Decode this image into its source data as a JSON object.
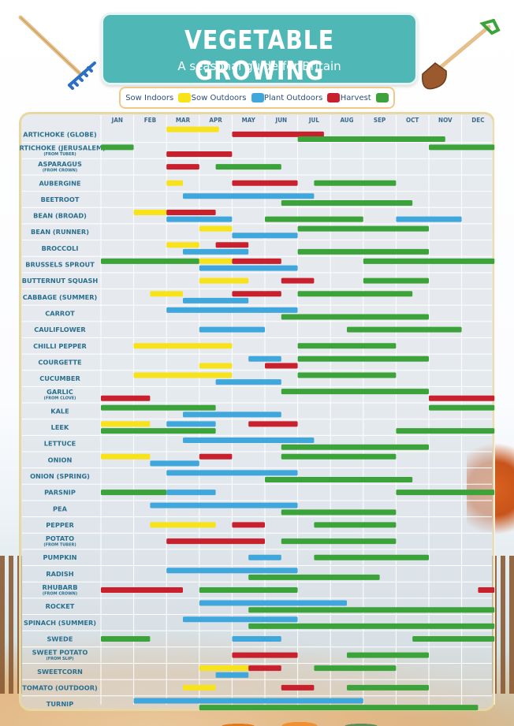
{
  "title": "VEGETABLE GROWING",
  "subtitle": "A seasonal guide for Britain",
  "colors": {
    "sow_indoors": "#f8e31a",
    "sow_outdoors": "#3fa7dc",
    "plant_outdoors": "#c8202d",
    "harvest": "#3ca23a",
    "title_bg": "#4fb8b6"
  },
  "legend": [
    {
      "label": "Sow Indoors",
      "key": "sow_indoors"
    },
    {
      "label": "Sow Outdoors",
      "key": "sow_outdoors"
    },
    {
      "label": "Plant Outdoors",
      "key": "plant_outdoors"
    },
    {
      "label": "Harvest",
      "key": "harvest"
    }
  ],
  "months": [
    "JAN",
    "FEB",
    "MAR",
    "APR",
    "MAY",
    "JUN",
    "JUL",
    "AUG",
    "SEP",
    "OCT",
    "NOV",
    "DEC"
  ],
  "chart_data": {
    "type": "table",
    "columns": [
      "JAN",
      "FEB",
      "MAR",
      "APR",
      "MAY",
      "JUN",
      "JUL",
      "AUG",
      "SEP",
      "OCT",
      "NOV",
      "DEC"
    ],
    "rows": [
      {
        "name": "ARTICHOKE (GLOBE)",
        "sub": "",
        "bars": [
          [
            [
              "i",
              2,
              3.6
            ]
          ],
          [
            [
              "p",
              4,
              6.8
            ]
          ],
          [
            [
              "h",
              6,
              10.5
            ]
          ]
        ]
      },
      {
        "name": "ARTICHOKE (JERUSALEM)",
        "sub": "(FROM TUBER)",
        "bars": [
          [
            [
              "h",
              0,
              1
            ],
            [
              "h",
              10,
              12
            ]
          ],
          [
            [
              "p",
              2,
              4
            ]
          ]
        ]
      },
      {
        "name": "ASPARAGUS",
        "sub": "(FROM CROWN)",
        "bars": [
          [
            [
              "p",
              2,
              3
            ],
            [
              "h",
              3.5,
              5.5
            ]
          ]
        ]
      },
      {
        "name": "AUBERGINE",
        "sub": "",
        "bars": [
          [
            [
              "i",
              2,
              2.5
            ],
            [
              "p",
              4,
              6
            ],
            [
              "h",
              6.5,
              9
            ]
          ]
        ]
      },
      {
        "name": "BEETROOT",
        "sub": "",
        "bars": [
          [
            [
              "o",
              2.5,
              6.5
            ]
          ],
          [
            [
              "h",
              5.5,
              9.5
            ]
          ]
        ]
      },
      {
        "name": "BEAN (BROAD)",
        "sub": "",
        "bars": [
          [
            [
              "i",
              1,
              2
            ],
            [
              "p",
              2,
              3.5
            ]
          ],
          [
            [
              "o",
              2,
              4
            ],
            [
              "h",
              5,
              8
            ],
            [
              "o",
              9,
              11
            ]
          ]
        ]
      },
      {
        "name": "BEAN (RUNNER)",
        "sub": "",
        "bars": [
          [
            [
              "i",
              3,
              4
            ],
            [
              "h",
              6,
              10
            ]
          ],
          [
            [
              "o",
              4,
              6
            ]
          ]
        ]
      },
      {
        "name": "BROCCOLI",
        "sub": "",
        "bars": [
          [
            [
              "i",
              2,
              3
            ],
            [
              "p",
              3.5,
              4.5
            ]
          ],
          [
            [
              "o",
              2.5,
              4.5
            ],
            [
              "h",
              6,
              10
            ]
          ]
        ]
      },
      {
        "name": "BRUSSELS SPROUT",
        "sub": "",
        "bars": [
          [
            [
              "h",
              0,
              3
            ],
            [
              "i",
              3,
              4
            ],
            [
              "p",
              4,
              5.5
            ],
            [
              "h",
              8,
              12
            ]
          ],
          [
            [
              "o",
              3,
              6
            ]
          ]
        ]
      },
      {
        "name": "BUTTERNUT SQUASH",
        "sub": "",
        "bars": [
          [
            [
              "i",
              3,
              4.5
            ],
            [
              "p",
              5.5,
              6.5
            ],
            [
              "h",
              8,
              10
            ]
          ]
        ]
      },
      {
        "name": "CABBAGE (SUMMER)",
        "sub": "",
        "bars": [
          [
            [
              "i",
              1.5,
              2.5
            ],
            [
              "p",
              4,
              5.5
            ],
            [
              "h",
              6,
              9.5
            ]
          ],
          [
            [
              "o",
              2.5,
              4.5
            ]
          ]
        ]
      },
      {
        "name": "CARROT",
        "sub": "",
        "bars": [
          [
            [
              "o",
              2,
              6
            ]
          ],
          [
            [
              "h",
              5.5,
              10
            ]
          ]
        ]
      },
      {
        "name": "CAULIFLOWER",
        "sub": "",
        "bars": [
          [
            [
              "o",
              3,
              5
            ],
            [
              "h",
              7.5,
              11
            ]
          ]
        ]
      },
      {
        "name": "CHILLI PEPPER",
        "sub": "",
        "bars": [
          [
            [
              "i",
              1,
              4
            ],
            [
              "h",
              6,
              9
            ]
          ]
        ]
      },
      {
        "name": "COURGETTE",
        "sub": "",
        "bars": [
          [
            [
              "o",
              4.5,
              5.5
            ],
            [
              "h",
              6,
              10
            ]
          ],
          [
            [
              "i",
              3,
              4
            ],
            [
              "p",
              5,
              6
            ]
          ]
        ]
      },
      {
        "name": "CUCUMBER",
        "sub": "",
        "bars": [
          [
            [
              "i",
              1,
              4
            ],
            [
              "h",
              6,
              9
            ]
          ],
          [
            [
              "o",
              3.5,
              5.5
            ]
          ]
        ]
      },
      {
        "name": "GARLIC",
        "sub": "(FROM CLOVE)",
        "bars": [
          [
            [
              "h",
              5.5,
              10
            ]
          ],
          [
            [
              "p",
              0,
              1.5
            ],
            [
              "p",
              10,
              12
            ]
          ]
        ]
      },
      {
        "name": "KALE",
        "sub": "",
        "bars": [
          [
            [
              "h",
              0,
              3.5
            ],
            [
              "h",
              10,
              12
            ]
          ],
          [
            [
              "o",
              2.5,
              5.5
            ]
          ]
        ]
      },
      {
        "name": "LEEK",
        "sub": "",
        "bars": [
          [
            [
              "i",
              0,
              1.5
            ],
            [
              "o",
              2,
              3.5
            ],
            [
              "p",
              4.5,
              6
            ]
          ],
          [
            [
              "h",
              0,
              3.5
            ],
            [
              "h",
              9,
              12
            ]
          ]
        ]
      },
      {
        "name": "LETTUCE",
        "sub": "",
        "bars": [
          [
            [
              "o",
              2.5,
              6.5
            ]
          ],
          [
            [
              "h",
              5.5,
              10
            ]
          ]
        ]
      },
      {
        "name": "ONION",
        "sub": "",
        "bars": [
          [
            [
              "i",
              0,
              1.5
            ],
            [
              "p",
              3,
              4
            ],
            [
              "h",
              5.5,
              9
            ]
          ],
          [
            [
              "o",
              1.5,
              3
            ]
          ]
        ]
      },
      {
        "name": "ONION (SPRING)",
        "sub": "",
        "bars": [
          [
            [
              "o",
              2,
              6
            ]
          ],
          [
            [
              "h",
              5,
              9.5
            ]
          ]
        ]
      },
      {
        "name": "PARSNIP",
        "sub": "",
        "bars": [
          [
            [
              "h",
              0,
              2
            ],
            [
              "o",
              2,
              3.5
            ],
            [
              "h",
              9,
              12
            ]
          ]
        ]
      },
      {
        "name": "PEA",
        "sub": "",
        "bars": [
          [
            [
              "o",
              1.5,
              6
            ]
          ],
          [
            [
              "h",
              5.5,
              9
            ]
          ]
        ]
      },
      {
        "name": "PEPPER",
        "sub": "",
        "bars": [
          [
            [
              "i",
              1.5,
              3.5
            ],
            [
              "p",
              4,
              5
            ],
            [
              "h",
              6.5,
              9
            ]
          ]
        ]
      },
      {
        "name": "POTATO",
        "sub": "(FROM TUBER)",
        "bars": [
          [
            [
              "p",
              2,
              5
            ],
            [
              "h",
              5.5,
              9
            ]
          ]
        ]
      },
      {
        "name": "PUMPKIN",
        "sub": "",
        "bars": [
          [
            [
              "o",
              4.5,
              5.5
            ],
            [
              "h",
              6.5,
              10
            ]
          ]
        ]
      },
      {
        "name": "RADISH",
        "sub": "",
        "bars": [
          [
            [
              "o",
              2,
              6
            ]
          ],
          [
            [
              "h",
              4.5,
              8.5
            ]
          ]
        ]
      },
      {
        "name": "RHUBARB",
        "sub": "(FROM CROWN)",
        "bars": [
          [
            [
              "p",
              0,
              2.5
            ],
            [
              "h",
              3,
              6
            ],
            [
              "p",
              11.5,
              12
            ]
          ]
        ]
      },
      {
        "name": "ROCKET",
        "sub": "",
        "bars": [
          [
            [
              "o",
              3,
              7.5
            ]
          ],
          [
            [
              "h",
              4.5,
              12
            ]
          ]
        ]
      },
      {
        "name": "SPINACH (SUMMER)",
        "sub": "",
        "bars": [
          [
            [
              "o",
              2.5,
              6
            ]
          ],
          [
            [
              "h",
              4.5,
              12
            ]
          ]
        ]
      },
      {
        "name": "SWEDE",
        "sub": "",
        "bars": [
          [
            [
              "h",
              0,
              1.5
            ],
            [
              "o",
              4,
              5.5
            ],
            [
              "h",
              9.5,
              12
            ]
          ]
        ]
      },
      {
        "name": "SWEET POTATO",
        "sub": "(FROM SLIP)",
        "bars": [
          [
            [
              "p",
              4,
              6
            ],
            [
              "h",
              7.5,
              10
            ]
          ]
        ]
      },
      {
        "name": "SWEETCORN",
        "sub": "",
        "bars": [
          [
            [
              "i",
              3,
              4.5
            ],
            [
              "p",
              4.5,
              5.5
            ],
            [
              "h",
              6.5,
              9
            ]
          ],
          [
            [
              "o",
              3.5,
              4.5
            ]
          ]
        ]
      },
      {
        "name": "TOMATO (OUTDOOR)",
        "sub": "",
        "bars": [
          [
            [
              "i",
              2.5,
              3.5
            ],
            [
              "p",
              5.5,
              6.5
            ],
            [
              "h",
              7.5,
              10
            ]
          ]
        ]
      },
      {
        "name": "TURNIP",
        "sub": "",
        "bars": [
          [
            [
              "o",
              1,
              8
            ]
          ],
          [
            [
              "h",
              3,
              11.5
            ]
          ]
        ]
      }
    ]
  }
}
